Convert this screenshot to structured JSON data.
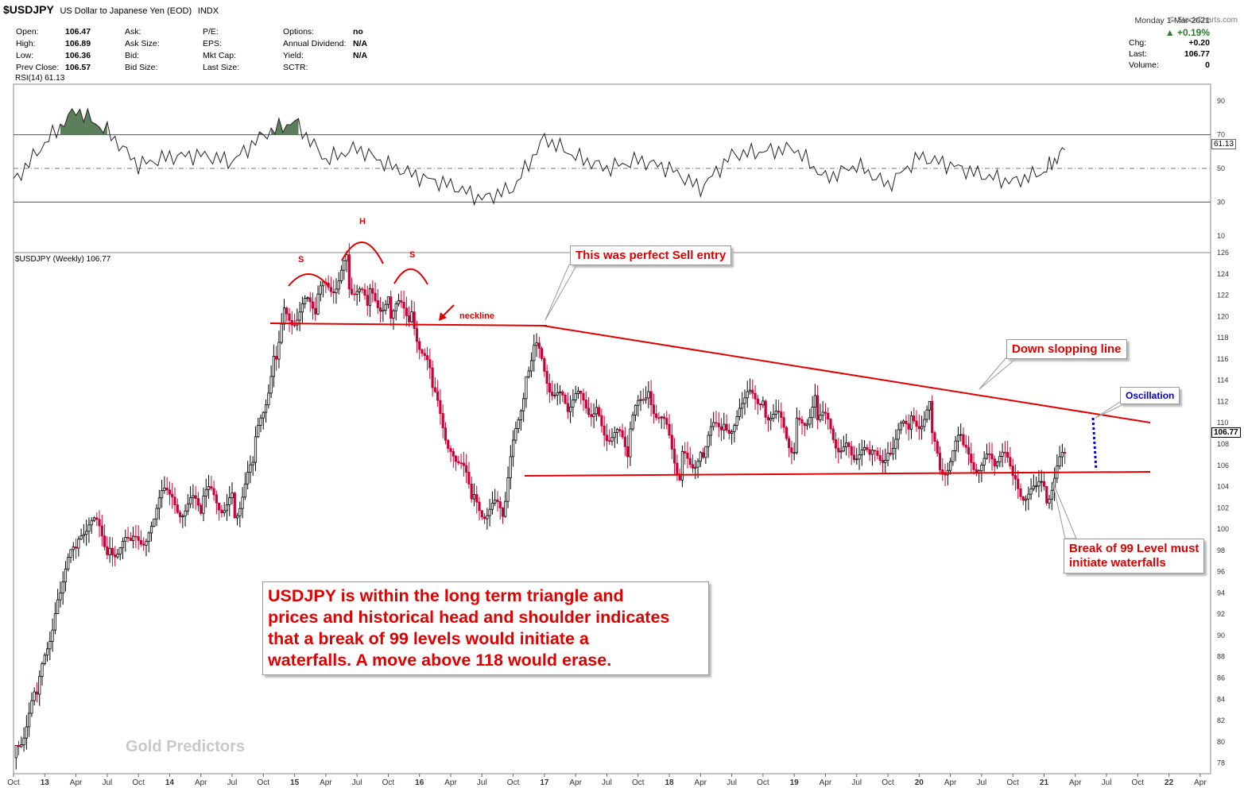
{
  "header": {
    "symbol": "$USDJPY",
    "description": "US Dollar to Japanese Yen (EOD)",
    "exchange": "INDX",
    "credit": "© StockCharts.com"
  },
  "stats": [
    {
      "label": "Open:",
      "value": "106.47"
    },
    {
      "label": "High:",
      "value": "106.89"
    },
    {
      "label": "Low:",
      "value": "106.36"
    },
    {
      "label": "Prev Close:",
      "value": "106.57"
    },
    {
      "label": "Ask:",
      "value": ""
    },
    {
      "label": "Ask Size:",
      "value": ""
    },
    {
      "label": "Bid:",
      "value": ""
    },
    {
      "label": "Bid Size:",
      "value": ""
    },
    {
      "label": "P/E:",
      "value": ""
    },
    {
      "label": "EPS:",
      "value": ""
    },
    {
      "label": "Mkt Cap:",
      "value": ""
    },
    {
      "label": "Last Size:",
      "value": ""
    },
    {
      "label": "Options:",
      "value": "no"
    },
    {
      "label": "Annual Dividend:",
      "value": "N/A"
    },
    {
      "label": "Yield:",
      "value": "N/A"
    },
    {
      "label": "SCTR:",
      "value": ""
    }
  ],
  "quote": {
    "date": "Monday  1-Mar-2021",
    "pct": "▲ +0.19%",
    "chg_label": "Chg:",
    "chg": "+0.20",
    "last_label": "Last:",
    "last": "106.77",
    "volume_label": "Volume:",
    "volume": "0"
  },
  "colors": {
    "accent": "#e00000",
    "rsi_fill": "#5a7f5a",
    "dots": "#0000cc",
    "up": "#000000",
    "down": "#cc0033"
  },
  "annotations": {
    "sell_entry": "This was perfect Sell entry",
    "down_sloping": "Down slopping line",
    "oscillation": "Oscillation",
    "break99_line1": "Break of 99 Level must",
    "break99_line2": "initiate waterfalls",
    "neckline": "neckline",
    "shoulder_left": "S",
    "head": "H",
    "shoulder_right": "S",
    "summary_lines": [
      "USDJPY is within the long term triangle and",
      "prices and historical head and shoulder indicates",
      "that a break of 99 levels would initiate a",
      "waterfalls. A move above 118 would erase."
    ],
    "watermark": "Gold Predictors"
  },
  "chart_data": [
    {
      "type": "line",
      "title": "RSI(14) 61.13",
      "ylim": [
        0,
        100
      ],
      "y_ticks": [
        10,
        30,
        50,
        70,
        90
      ],
      "last_label": "61.13",
      "x": [
        "2012-10",
        "2013-01",
        "2013-04",
        "2013-07",
        "2013-10",
        "2014-01",
        "2014-04",
        "2014-07",
        "2014-10",
        "2015-01",
        "2015-04",
        "2015-07",
        "2015-10",
        "2016-01",
        "2016-04",
        "2016-07",
        "2016-10",
        "2017-01",
        "2017-04",
        "2017-07",
        "2017-10",
        "2018-01",
        "2018-04",
        "2018-07",
        "2018-10",
        "2019-01",
        "2019-04",
        "2019-07",
        "2019-10",
        "2020-01",
        "2020-04",
        "2020-07",
        "2020-10",
        "2021-01",
        "2021-03"
      ],
      "values": [
        42,
        65,
        85,
        72,
        52,
        57,
        58,
        54,
        70,
        78,
        55,
        62,
        52,
        45,
        40,
        32,
        38,
        68,
        57,
        50,
        55,
        50,
        38,
        58,
        60,
        62,
        44,
        52,
        40,
        57,
        52,
        46,
        42,
        48,
        61
      ]
    },
    {
      "type": "candlestick",
      "title": "$USDJPY (Weekly) 106.77",
      "ylim": [
        77,
        126
      ],
      "y_ticks": [
        78,
        80,
        82,
        84,
        86,
        88,
        90,
        92,
        94,
        96,
        98,
        100,
        102,
        104,
        106,
        108,
        110,
        112,
        114,
        116,
        118,
        120,
        122,
        124,
        126
      ],
      "last_label": "106.77",
      "x_ticks": [
        "Oct",
        "13",
        "Apr",
        "Jul",
        "Oct",
        "14",
        "Apr",
        "Jul",
        "Oct",
        "15",
        "Apr",
        "Jul",
        "Oct",
        "16",
        "Apr",
        "Jul",
        "Oct",
        "17",
        "Apr",
        "Jul",
        "Oct",
        "18",
        "Apr",
        "Jul",
        "Oct",
        "19",
        "Apr",
        "Jul",
        "Oct",
        "20",
        "Apr",
        "Jul",
        "Oct",
        "21",
        "Apr",
        "Jul",
        "Oct",
        "22",
        "Apr"
      ],
      "x": [
        "2012-10",
        "2012-12",
        "2013-02",
        "2013-04",
        "2013-05",
        "2013-07",
        "2013-09",
        "2013-11",
        "2014-01",
        "2014-04",
        "2014-07",
        "2014-09",
        "2014-11",
        "2014-12",
        "2015-03",
        "2015-06",
        "2015-08",
        "2015-10",
        "2015-12",
        "2016-02",
        "2016-04",
        "2016-06",
        "2016-09",
        "2016-11",
        "2016-12",
        "2017-03",
        "2017-06",
        "2017-09",
        "2017-11",
        "2018-02",
        "2018-04",
        "2018-06",
        "2018-08",
        "2018-10",
        "2019-01",
        "2019-03",
        "2019-06",
        "2019-08",
        "2019-10",
        "2019-12",
        "2020-02",
        "2020-03",
        "2020-05",
        "2020-08",
        "2020-10",
        "2020-12",
        "2021-01",
        "2021-03"
      ],
      "close": [
        78.5,
        83.0,
        93.5,
        97.5,
        101.0,
        98.5,
        98.0,
        100.5,
        103.0,
        102.5,
        101.8,
        106.0,
        116.0,
        120.0,
        121.0,
        124.5,
        121.0,
        121.0,
        121.0,
        113.5,
        108.5,
        102.5,
        101.5,
        113.5,
        117.5,
        111.5,
        111.0,
        108.0,
        113.5,
        106.0,
        107.0,
        110.0,
        111.0,
        112.5,
        108.5,
        111.5,
        108.0,
        106.0,
        108.0,
        109.5,
        111.0,
        105.0,
        107.5,
        106.5,
        105.0,
        103.5,
        103.0,
        106.77
      ]
    }
  ]
}
